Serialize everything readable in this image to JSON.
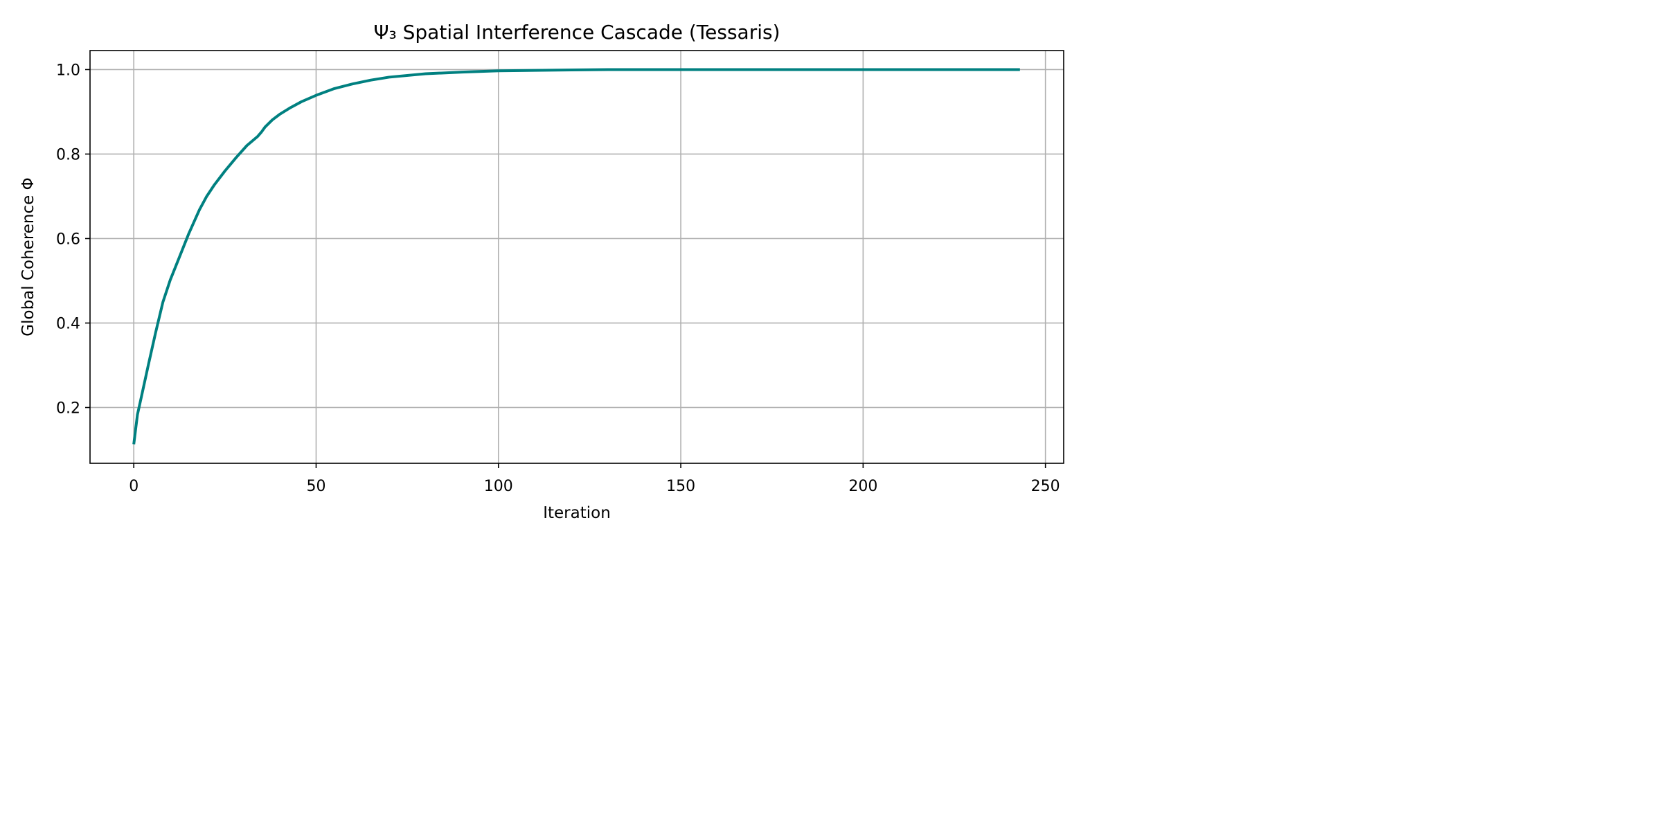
{
  "chart_data": {
    "type": "line",
    "title": "Ψ₃ Spatial Interference Cascade (Tessaris)",
    "xlabel": "Iteration",
    "ylabel": "Global Coherence Φ",
    "xlim": [
      -12,
      255
    ],
    "ylim": [
      0.068,
      1.045
    ],
    "xticks": [
      0,
      50,
      100,
      150,
      200,
      250
    ],
    "yticks": [
      0.2,
      0.4,
      0.6,
      0.8,
      1.0
    ],
    "xtick_labels": [
      "0",
      "50",
      "100",
      "150",
      "200",
      "250"
    ],
    "ytick_labels": [
      "0.2",
      "0.4",
      "0.6",
      "0.8",
      "1.0"
    ],
    "grid": true,
    "series": [
      {
        "color": "#008080",
        "x": [
          0,
          1,
          2,
          4,
          6,
          8,
          10,
          12,
          15,
          18,
          20,
          22,
          25,
          28,
          31,
          34,
          35,
          36,
          38,
          40,
          43,
          46,
          50,
          55,
          60,
          65,
          70,
          80,
          90,
          100,
          110,
          120,
          130,
          140,
          150,
          175,
          200,
          225,
          243
        ],
        "y": [
          0.113,
          0.183,
          0.222,
          0.301,
          0.378,
          0.45,
          0.502,
          0.545,
          0.61,
          0.668,
          0.7,
          0.726,
          0.76,
          0.791,
          0.82,
          0.842,
          0.852,
          0.864,
          0.881,
          0.894,
          0.91,
          0.924,
          0.939,
          0.955,
          0.966,
          0.975,
          0.982,
          0.99,
          0.994,
          0.997,
          0.998,
          0.999,
          1.0,
          1.0,
          1.0,
          1.0,
          1.0,
          1.0,
          1.0
        ]
      }
    ]
  }
}
